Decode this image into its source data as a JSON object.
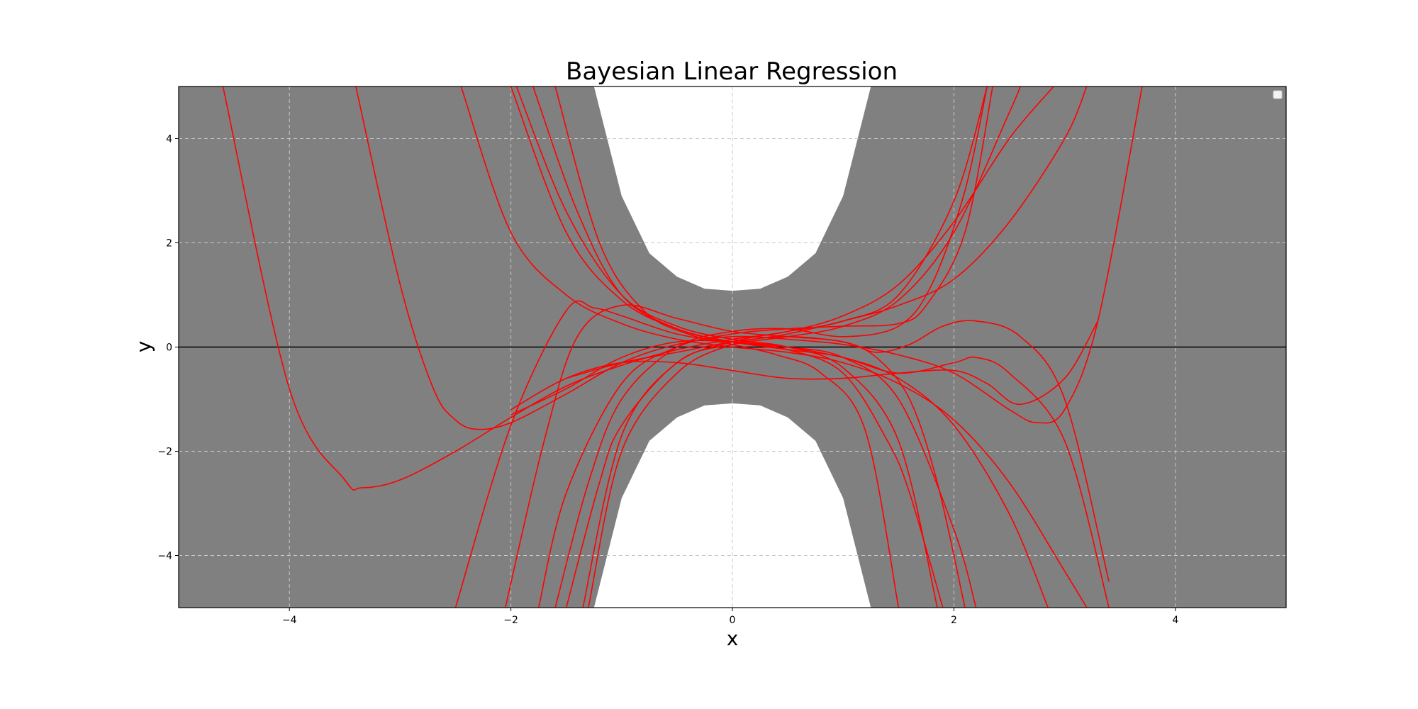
{
  "chart_data": {
    "type": "line",
    "title": "Bayesian Linear Regression",
    "xlabel": "x",
    "ylabel": "y",
    "xlim": [
      -5,
      5
    ],
    "ylim": [
      -5,
      5
    ],
    "xticks": [
      -4,
      -2,
      0,
      2,
      4
    ],
    "yticks": [
      -4,
      -2,
      0,
      2,
      4
    ],
    "xtick_labels": [
      "−4",
      "−2",
      "0",
      "2",
      "4"
    ],
    "ytick_labels": [
      "−4",
      "−2",
      "0",
      "2",
      "4"
    ],
    "grid": true,
    "legend_placement": "top-right",
    "reference_line_y": 0,
    "colors": {
      "band": "#808080",
      "curves": "#ff0000",
      "reference_line": "#000000",
      "grid": "#c8c8c8",
      "background": "#ffffff"
    },
    "uncertainty_band": {
      "x": [
        -5.0,
        -2.0,
        -1.5,
        -1.25,
        -1.0,
        -0.75,
        -0.5,
        -0.25,
        0.0,
        0.25,
        0.5,
        0.75,
        1.0,
        1.25,
        1.5,
        2.0,
        5.0
      ],
      "upper": [
        5.0,
        5.0,
        5.0,
        5.0,
        2.9,
        1.8,
        1.35,
        1.12,
        1.08,
        1.12,
        1.35,
        1.8,
        2.9,
        5.0,
        5.0,
        5.0,
        5.0
      ],
      "lower": [
        -5.0,
        -5.0,
        -5.0,
        -5.0,
        -2.9,
        -1.8,
        -1.35,
        -1.12,
        -1.08,
        -1.12,
        -1.35,
        -1.8,
        -2.9,
        -5.0,
        -5.0,
        -5.0,
        -5.0
      ]
    },
    "series": [
      {
        "x": [
          -4.6,
          -4.0,
          -3.5,
          -3.35,
          -3.0,
          -2.5,
          -2.0,
          -1.5,
          -1.0,
          -0.5,
          0.0,
          0.5,
          1.0,
          1.5,
          2.0,
          2.5,
          2.9
        ],
        "y": [
          5.0,
          -0.8,
          -2.55,
          -2.7,
          -2.55,
          -2.0,
          -1.35,
          -0.75,
          -0.35,
          -0.05,
          0.15,
          0.3,
          0.6,
          1.2,
          2.4,
          4.0,
          5.0
        ]
      },
      {
        "x": [
          -3.4,
          -3.0,
          -2.7,
          -2.5,
          -2.3,
          -2.0,
          -1.5,
          -1.0,
          -0.5,
          0.0,
          0.5,
          1.0,
          1.5,
          2.0,
          2.5,
          2.75,
          3.0,
          3.3,
          3.7
        ],
        "y": [
          5.0,
          1.2,
          -0.8,
          -1.4,
          -1.58,
          -1.45,
          -0.9,
          -0.3,
          0.05,
          0.2,
          0.15,
          0.05,
          -0.15,
          -0.5,
          -1.2,
          -1.45,
          -1.2,
          0.5,
          5.0
        ]
      },
      {
        "x": [
          -2.45,
          -2.0,
          -1.5,
          -1.0,
          -0.5,
          0.0,
          0.5,
          1.0,
          1.5,
          2.0,
          2.5,
          3.0,
          3.2
        ],
        "y": [
          5.0,
          2.2,
          1.0,
          0.45,
          0.15,
          0.0,
          -0.1,
          -0.3,
          -0.7,
          -1.4,
          -2.6,
          -4.3,
          -5.0
        ]
      },
      {
        "x": [
          -2.0,
          -1.5,
          -1.0,
          -0.5,
          0.0,
          0.5,
          1.0,
          1.5,
          2.0,
          2.5,
          2.85
        ],
        "y": [
          5.0,
          2.2,
          0.9,
          0.35,
          0.1,
          -0.05,
          -0.2,
          -0.6,
          -1.5,
          -3.2,
          -5.0
        ]
      },
      {
        "x": [
          -1.95,
          -1.5,
          -1.0,
          -0.5,
          0.0,
          0.5,
          1.0,
          1.5,
          1.85
        ],
        "y": [
          5.0,
          2.6,
          1.0,
          0.4,
          0.15,
          0.0,
          -0.4,
          -1.8,
          -5.0
        ]
      },
      {
        "x": [
          -1.8,
          -1.4,
          -1.0,
          -0.5,
          0.0,
          0.5,
          1.0,
          1.4,
          1.6,
          1.9
        ],
        "y": [
          5.0,
          2.6,
          1.0,
          0.35,
          0.1,
          -0.05,
          -0.5,
          -1.8,
          -2.8,
          -5.0
        ]
      },
      {
        "x": [
          -1.6,
          -1.2,
          -0.8,
          -0.4,
          0.0,
          0.4,
          0.8,
          1.2,
          1.5
        ],
        "y": [
          5.0,
          2.0,
          0.7,
          0.25,
          0.05,
          -0.15,
          -0.5,
          -1.6,
          -5.0
        ]
      },
      {
        "x": [
          -2.5,
          -2.0,
          -1.5,
          -1.25,
          -1.0,
          -0.5,
          0.0,
          0.5,
          1.0,
          1.5,
          2.0,
          2.2
        ],
        "y": [
          -5.0,
          -1.5,
          0.7,
          0.75,
          0.6,
          0.25,
          0.1,
          0.0,
          -0.2,
          -1.0,
          -3.5,
          -5.0
        ]
      },
      {
        "x": [
          -2.05,
          -1.7,
          -1.4,
          -1.0,
          -0.5,
          0.0,
          0.5,
          1.0,
          1.3,
          1.6,
          1.85,
          2.1
        ],
        "y": [
          -5.0,
          -1.8,
          0.2,
          0.8,
          0.55,
          0.3,
          0.2,
          0.1,
          -0.2,
          -1.0,
          -2.6,
          -5.0
        ]
      },
      {
        "x": [
          -1.75,
          -1.5,
          -1.0,
          -0.5,
          0.0,
          0.5,
          1.0,
          1.5,
          1.75,
          2.1,
          2.35
        ],
        "y": [
          -5.0,
          -2.8,
          -0.7,
          0.0,
          0.25,
          0.35,
          0.4,
          0.45,
          0.8,
          2.2,
          5.0
        ]
      },
      {
        "x": [
          -1.6,
          -1.3,
          -1.0,
          -0.5,
          0.0,
          0.5,
          1.0,
          1.5,
          1.8,
          2.1,
          2.3
        ],
        "y": [
          -5.0,
          -2.6,
          -1.0,
          0.0,
          0.3,
          0.35,
          0.2,
          0.4,
          1.2,
          3.0,
          5.0
        ]
      },
      {
        "x": [
          -1.5,
          -1.2,
          -1.0,
          -0.5,
          0.0,
          0.5,
          1.0,
          1.5,
          2.0,
          2.3
        ],
        "y": [
          -5.0,
          -2.6,
          -1.5,
          -0.3,
          0.1,
          0.3,
          0.5,
          1.0,
          2.8,
          5.0
        ]
      },
      {
        "x": [
          -1.35,
          -1.0,
          -0.5,
          0.0,
          0.5,
          1.0,
          1.5,
          2.0,
          2.5,
          2.6
        ],
        "y": [
          -5.0,
          -1.7,
          -0.3,
          0.05,
          0.2,
          0.4,
          0.9,
          2.2,
          4.5,
          5.0
        ]
      },
      {
        "x": [
          -1.3,
          -1.0,
          -0.5,
          0.0,
          0.5,
          1.0,
          1.5,
          2.0,
          2.5,
          3.0,
          3.2
        ],
        "y": [
          -5.0,
          -2.0,
          -0.5,
          0.05,
          0.25,
          0.5,
          0.8,
          1.3,
          2.4,
          4.0,
          5.0
        ]
      },
      {
        "x": [
          -2.0,
          -1.5,
          -1.0,
          -0.5,
          0.0,
          0.5,
          1.0,
          1.5,
          2.0,
          2.3,
          2.6,
          3.0,
          3.3
        ],
        "y": [
          -1.2,
          -0.6,
          -0.3,
          -0.3,
          -0.45,
          -0.6,
          -0.6,
          -0.5,
          -0.45,
          -0.7,
          -1.1,
          -0.6,
          0.5
        ]
      },
      {
        "x": [
          -2.0,
          -1.5,
          -1.0,
          -0.5,
          0.0,
          0.5,
          1.0,
          1.5,
          2.0,
          2.2,
          2.5,
          3.0,
          3.4
        ],
        "y": [
          -1.3,
          -0.8,
          -0.2,
          0.1,
          0.1,
          0.0,
          -0.2,
          -0.5,
          -0.3,
          -0.2,
          -0.5,
          -1.8,
          -5.0
        ]
      },
      {
        "x": [
          -1.5,
          -1.0,
          -0.5,
          0.0,
          0.5,
          1.0,
          1.3,
          1.6,
          1.9,
          2.2,
          2.6,
          3.0,
          3.4
        ],
        "y": [
          -0.6,
          -0.3,
          -0.1,
          0.1,
          0.2,
          0.1,
          -0.1,
          0.05,
          0.4,
          0.5,
          0.2,
          -1.0,
          -4.5
        ]
      }
    ]
  }
}
